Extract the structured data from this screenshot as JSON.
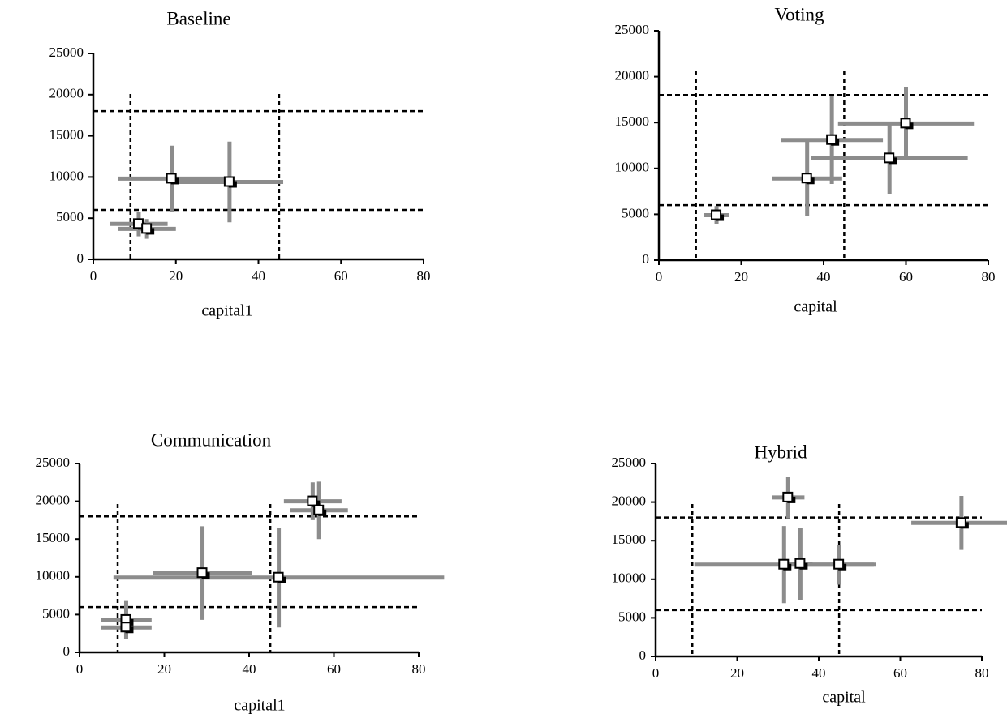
{
  "chart_data": [
    {
      "type": "scatter",
      "title": "Baseline",
      "xlabel": "capital1",
      "color": "#8c8c8c",
      "xlim": [
        0,
        80
      ],
      "ylim": [
        0,
        25000
      ],
      "xticks": [
        0,
        20,
        40,
        60,
        80
      ],
      "yticks": [
        0,
        5000,
        10000,
        15000,
        20000,
        25000
      ],
      "x": [
        11,
        13,
        19,
        33
      ],
      "values": [
        4300,
        3700,
        9800,
        9400
      ],
      "xerr": [
        7,
        7,
        13,
        13
      ],
      "yerr": [
        1500,
        1200,
        4000,
        4900
      ],
      "vlines": [
        9,
        45
      ],
      "hlines": [
        6000,
        18000
      ]
    },
    {
      "type": "scatter",
      "title": "Voting",
      "xlabel": "capital",
      "color": "#8c8c8c",
      "xlim": [
        0,
        80
      ],
      "ylim": [
        0,
        25000
      ],
      "xticks": [
        0,
        20,
        40,
        60,
        80
      ],
      "yticks": [
        0,
        5000,
        10000,
        15000,
        20000,
        25000
      ],
      "x": [
        14,
        36,
        42,
        56,
        60
      ],
      "values": [
        4900,
        8900,
        13100,
        11100,
        14900
      ],
      "xerr": [
        3,
        8.5,
        12.4,
        19,
        16.5
      ],
      "yerr": [
        1000,
        4100,
        4800,
        3900,
        4000
      ],
      "vlines": [
        9,
        45
      ],
      "hlines": [
        6000,
        18000
      ]
    },
    {
      "type": "scatter",
      "title": "Communication",
      "xlabel": "capital1",
      "color": "#8c8c8c",
      "xlim": [
        0,
        80
      ],
      "ylim": [
        0,
        25000
      ],
      "xticks": [
        0,
        20,
        40,
        60,
        80
      ],
      "yticks": [
        0,
        5000,
        10000,
        15000,
        20000,
        25000
      ],
      "x": [
        11,
        11,
        29,
        47,
        55,
        56.5
      ],
      "values": [
        4300,
        3300,
        10500,
        9900,
        20000,
        18800
      ],
      "xerr": [
        6,
        6,
        11.7,
        39,
        6.8,
        6.8
      ],
      "yerr": [
        2500,
        1500,
        6200,
        6600,
        2500,
        3800
      ],
      "vlines": [
        9,
        45
      ],
      "hlines": [
        6000,
        18000
      ]
    },
    {
      "type": "scatter",
      "title": "Hybrid",
      "xlabel": "capital",
      "color": "#8c8c8c",
      "xlim": [
        0,
        80
      ],
      "ylim": [
        0,
        25000
      ],
      "xticks": [
        0,
        20,
        40,
        60,
        80
      ],
      "yticks": [
        0,
        5000,
        10000,
        15000,
        20000,
        25000
      ],
      "x": [
        32.5,
        31.5,
        35.5,
        45,
        75
      ],
      "values": [
        20600,
        11900,
        12000,
        11900,
        17300
      ],
      "xerr": [
        4,
        22,
        3,
        9,
        12.3
      ],
      "yerr": [
        2700,
        5000,
        4700,
        2600,
        3500
      ],
      "vlines": [
        9,
        45
      ],
      "hlines": [
        6000,
        18000
      ]
    }
  ]
}
